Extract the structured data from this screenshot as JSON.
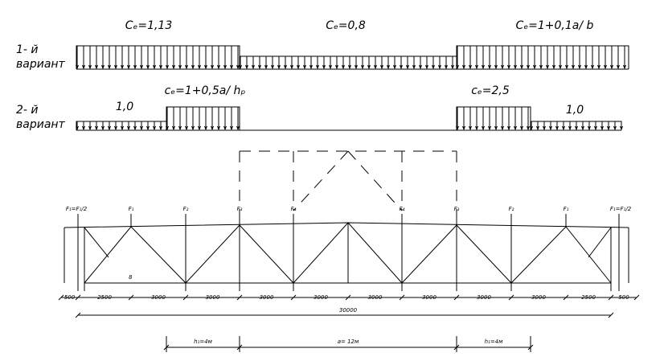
{
  "variant1": {
    "label_line1": "1- й",
    "label_line2": "вариант",
    "coefficients": [
      "Cₑ=1,13",
      "Cₑ=0,8",
      "Cₑ=1+0,1a/ b"
    ]
  },
  "variant2": {
    "label_line1": "2- й",
    "label_line2": "вариант",
    "coefficients": [
      "1,0",
      "cₑ=1+0,5a/ hₚ",
      "cₑ=2,5",
      "1,0"
    ]
  },
  "truss": {
    "forces": [
      "F₁=F₁/2",
      "F₁",
      "F₂",
      "F₃",
      "F₄",
      "F₄",
      "F₃",
      "F₂",
      "F₁",
      "F₁=F₁/2"
    ],
    "node_label": "8"
  },
  "dimensions": {
    "panels": [
      "500",
      "2500",
      "3000",
      "3000",
      "3000",
      "3000",
      "3000",
      "3000",
      "3000",
      "3000",
      "2500",
      "500"
    ],
    "total": "30000",
    "bottom": [
      "h₁=4м",
      "a= 12м",
      "h₁=4м"
    ]
  }
}
